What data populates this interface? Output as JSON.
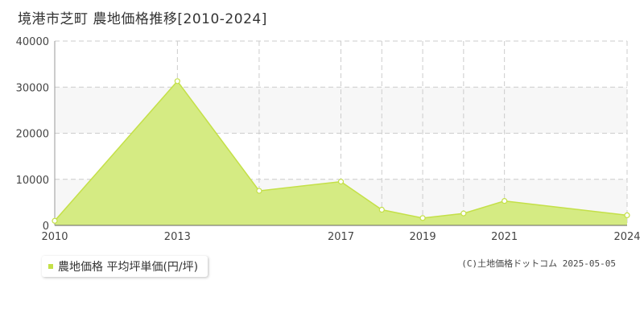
{
  "title": "境港市芝町 農地価格推移[2010-2024]",
  "legend": {
    "label": "農地価格 平均坪単価(円/坪)"
  },
  "credit": "(C)土地価格ドットコム 2025-05-05",
  "colors": {
    "line": "#c4e048",
    "fill": "#d5eb83",
    "marker_fill": "#ffffff",
    "grid": "#cccccc",
    "band": "#f7f7f7"
  },
  "chart_data": {
    "type": "area",
    "title": "境港市芝町 農地価格推移[2010-2024]",
    "x": [
      2010,
      2013,
      2015,
      2017,
      2018,
      2019,
      2020,
      2021,
      2024
    ],
    "series": [
      {
        "name": "農地価格 平均坪単価(円/坪)",
        "values": [
          1000,
          31300,
          7500,
          9500,
          3400,
          1600,
          2600,
          5300,
          2200
        ]
      }
    ],
    "xlim": [
      2010,
      2024
    ],
    "ylim": [
      0,
      40000
    ],
    "x_tick_labels": [
      "2010",
      "2013",
      "2017",
      "2019",
      "2021",
      "2024"
    ],
    "y_tick_labels": [
      "0",
      "10000",
      "20000",
      "30000",
      "40000"
    ],
    "grid": true,
    "legend_position": "bottom-left"
  }
}
